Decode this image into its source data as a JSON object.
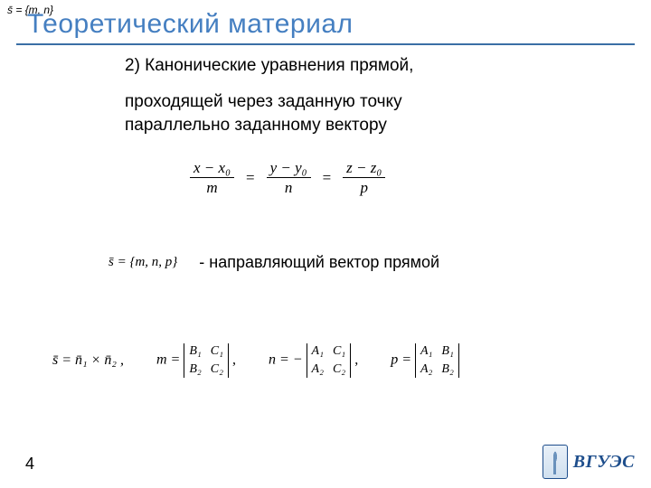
{
  "corner_vec": "s̄ = {m, n}",
  "title": "Теоретический материал",
  "heading2": "2) Канонические уравнения прямой,",
  "sub2_line1": "проходящей через заданную точку",
  "sub2_line2": "параллельно заданному вектору",
  "canon": {
    "f1_num": "x − x₀",
    "f1_den": "m",
    "f2_num": "y − y₀",
    "f2_den": "n",
    "f3_num": "z − z₀",
    "f3_den": "p"
  },
  "s_vec_def": "s̄ = {m, n, p}",
  "dir_label": "-   направляющий вектор прямой",
  "cross": {
    "lhs": "s̄ = n̄₁ × n̄₂ ,",
    "m_lhs": "m =",
    "m_r1c1": "B₁",
    "m_r1c2": "C₁",
    "m_r2c1": "B₂",
    "m_r2c2": "C₂",
    "n_lhs": "n = −",
    "n_r1c1": "A₁",
    "n_r1c2": "C₁",
    "n_r2c1": "A₂",
    "n_r2c2": "C₂",
    "p_lhs": "p =",
    "p_r1c1": "A₁",
    "p_r1c2": "B₁",
    "p_r2c1": "A₂",
    "p_r2c2": "B₂"
  },
  "page_num": "4",
  "logo_text": "ВГУЭС",
  "colors": {
    "accent": "#457fc1",
    "rule": "#3a6ea5",
    "logo": "#1e4e8c"
  }
}
